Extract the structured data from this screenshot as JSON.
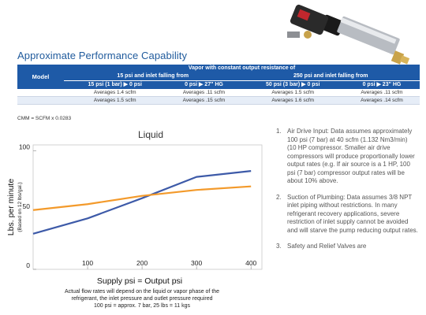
{
  "section_title": "Approximate Performance Capability",
  "table": {
    "header_model": "Model",
    "header_vapor": "Vapor with constant output resistance of",
    "group1": "15 psi and inlet falling from",
    "group2": "250 psi and inlet falling from",
    "sub": [
      "15 psi (1 bar) ▶ 0 psi",
      "0 psi ▶ 27\" HG",
      "50 psi (3 bar) ▶ 0 psi",
      "0 psi ▶ 23\" HG"
    ],
    "rows": [
      [
        "",
        "Averages 1.4 scfm",
        "Averages .11 scfm",
        "Averages 1.5 scfm",
        "Averages .11 scfm"
      ],
      [
        "",
        "Averages 1.5 scfm",
        "Averages .15 scfm",
        "Averages 1.6 scfm",
        "Averages .14 scfm"
      ]
    ]
  },
  "cmm_note": "CMM = SCFM x 0.0283",
  "chart_data": {
    "type": "line",
    "title": "Liquid",
    "xlabel": "Supply psi = Output psi",
    "ylabel": "Lbs. per minute",
    "ylabel_sub": "(Based on 12 lbs/gal.)",
    "xlim": [
      0,
      420
    ],
    "ylim": [
      0,
      105
    ],
    "xticks": [
      100,
      200,
      300,
      400
    ],
    "yticks": [
      0,
      50,
      100
    ],
    "series": [
      {
        "color": "#3d5aa8",
        "x": [
          0,
          100,
          200,
          300,
          400
        ],
        "y": [
          30,
          43,
          60,
          78,
          83
        ]
      },
      {
        "color": "#f39a2b",
        "x": [
          0,
          100,
          200,
          300,
          400
        ],
        "y": [
          50,
          55,
          62,
          67,
          70
        ]
      }
    ]
  },
  "caption": [
    "Actual flow rates will depend on the liquid or vapor phase of the",
    "refrigerant, the inlet pressure and outlet pressure required",
    "100 psi = approx. 7 bar,  25 lbs = 11 kgs"
  ],
  "notes": [
    {
      "num": "1.",
      "text": "Air Drive Input: Data assumes approximately 100 psi (7 bar) at 40 scfm (1.132 Nm3/min) (10 HP compressor. Smaller air drive compressors will produce proportionally lower output rates (e.g. If air source is a 1 HP, 100 psi (7 bar) compressor output rates will be about 10% above."
    },
    {
      "num": "2.",
      "text": "Suction of Plumbing: Data assumes 3/8 NPT inlet piping without restrictions. In many refrigerant recovery applications, severe restriction of inlet supply cannot be avoided and will starve the pump reducing output rates."
    },
    {
      "num": "3.",
      "text": "Safety and Relief Valves are"
    }
  ],
  "icons": {
    "product": "pump-product-photo"
  }
}
